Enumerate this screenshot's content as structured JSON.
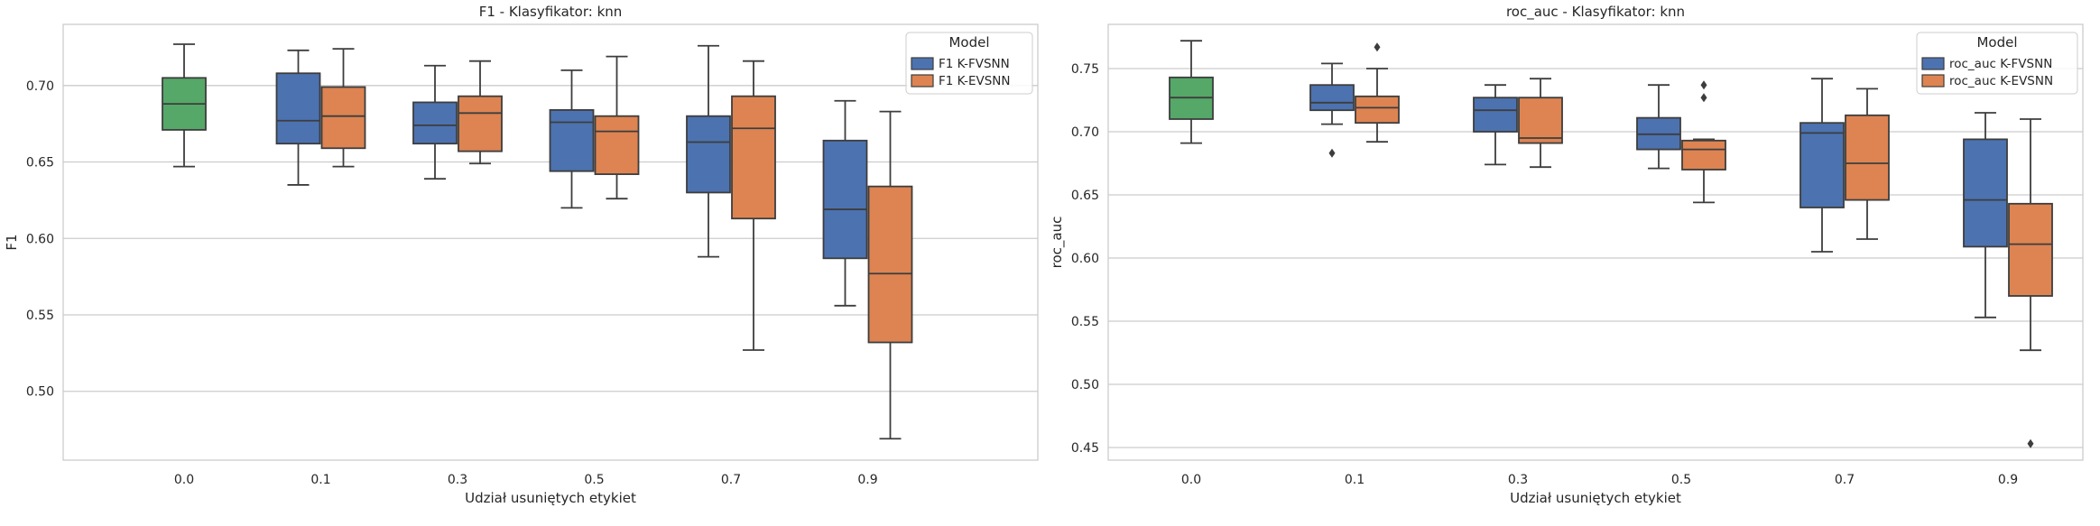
{
  "chart_data": [
    {
      "type": "box",
      "title": "F1 - Klasyfikator: knn",
      "xlabel": "Udział usuniętych etykiet",
      "ylabel": "F1",
      "categories": [
        "0.0",
        "0.1",
        "0.3",
        "0.5",
        "0.7",
        "0.9"
      ],
      "ylim": [
        0.455,
        0.74
      ],
      "yticks": [
        0.5,
        0.55,
        0.6,
        0.65,
        0.7
      ],
      "ytick_labels": [
        "0.50",
        "0.55",
        "0.60",
        "0.65",
        "0.70"
      ],
      "grid": true,
      "legend": {
        "title": "Model",
        "position": "top-right",
        "entries": [
          {
            "label": "F1 K-FVSNN",
            "color": "#4c72b0"
          },
          {
            "label": "F1 K-EVSNN",
            "color": "#dd8452"
          }
        ]
      },
      "baseline": {
        "category": "0.0",
        "color": "#55a868",
        "box": {
          "whislo": 0.647,
          "q1": 0.671,
          "med": 0.688,
          "q3": 0.705,
          "whishi": 0.727,
          "fliers": []
        }
      },
      "series": [
        {
          "name": "F1 K-FVSNN",
          "color": "#4c72b0",
          "boxes": [
            {
              "category": "0.1",
              "whislo": 0.635,
              "q1": 0.662,
              "med": 0.677,
              "q3": 0.708,
              "whishi": 0.723,
              "fliers": []
            },
            {
              "category": "0.3",
              "whislo": 0.639,
              "q1": 0.662,
              "med": 0.674,
              "q3": 0.689,
              "whishi": 0.713,
              "fliers": []
            },
            {
              "category": "0.5",
              "whislo": 0.62,
              "q1": 0.644,
              "med": 0.676,
              "q3": 0.684,
              "whishi": 0.71,
              "fliers": []
            },
            {
              "category": "0.7",
              "whislo": 0.588,
              "q1": 0.63,
              "med": 0.663,
              "q3": 0.68,
              "whishi": 0.726,
              "fliers": []
            },
            {
              "category": "0.9",
              "whislo": 0.556,
              "q1": 0.587,
              "med": 0.619,
              "q3": 0.664,
              "whishi": 0.69,
              "fliers": []
            }
          ]
        },
        {
          "name": "F1 K-EVSNN",
          "color": "#dd8452",
          "boxes": [
            {
              "category": "0.1",
              "whislo": 0.647,
              "q1": 0.659,
              "med": 0.68,
              "q3": 0.699,
              "whishi": 0.724,
              "fliers": []
            },
            {
              "category": "0.3",
              "whislo": 0.649,
              "q1": 0.657,
              "med": 0.682,
              "q3": 0.693,
              "whishi": 0.716,
              "fliers": []
            },
            {
              "category": "0.5",
              "whislo": 0.626,
              "q1": 0.642,
              "med": 0.67,
              "q3": 0.68,
              "whishi": 0.719,
              "fliers": []
            },
            {
              "category": "0.7",
              "whislo": 0.527,
              "q1": 0.613,
              "med": 0.672,
              "q3": 0.693,
              "whishi": 0.716,
              "fliers": []
            },
            {
              "category": "0.9",
              "whislo": 0.469,
              "q1": 0.532,
              "med": 0.577,
              "q3": 0.634,
              "whishi": 0.683,
              "fliers": []
            }
          ]
        }
      ]
    },
    {
      "type": "box",
      "title": "roc_auc - Klasyfikator: knn",
      "xlabel": "Udział usuniętych etykiet",
      "ylabel": "roc_auc",
      "categories": [
        "0.0",
        "0.1",
        "0.3",
        "0.5",
        "0.7",
        "0.9"
      ],
      "ylim": [
        0.44,
        0.785
      ],
      "yticks": [
        0.45,
        0.5,
        0.55,
        0.6,
        0.65,
        0.7,
        0.75
      ],
      "ytick_labels": [
        "0.45",
        "0.50",
        "0.55",
        "0.60",
        "0.65",
        "0.70",
        "0.75"
      ],
      "grid": true,
      "legend": {
        "title": "Model",
        "position": "top-right",
        "entries": [
          {
            "label": "roc_auc K-FVSNN",
            "color": "#4c72b0"
          },
          {
            "label": "roc_auc K-EVSNN",
            "color": "#dd8452"
          }
        ]
      },
      "baseline": {
        "category": "0.0",
        "color": "#55a868",
        "box": {
          "whislo": 0.691,
          "q1": 0.71,
          "med": 0.727,
          "q3": 0.743,
          "whishi": 0.772,
          "fliers": []
        }
      },
      "series": [
        {
          "name": "roc_auc K-FVSNN",
          "color": "#4c72b0",
          "boxes": [
            {
              "category": "0.1",
              "whislo": 0.706,
              "q1": 0.717,
              "med": 0.723,
              "q3": 0.737,
              "whishi": 0.754,
              "fliers": [
                0.683
              ]
            },
            {
              "category": "0.3",
              "whislo": 0.674,
              "q1": 0.7,
              "med": 0.717,
              "q3": 0.727,
              "whishi": 0.737,
              "fliers": []
            },
            {
              "category": "0.5",
              "whislo": 0.671,
              "q1": 0.686,
              "med": 0.698,
              "q3": 0.711,
              "whishi": 0.737,
              "fliers": []
            },
            {
              "category": "0.7",
              "whislo": 0.605,
              "q1": 0.64,
              "med": 0.699,
              "q3": 0.707,
              "whishi": 0.742,
              "fliers": []
            },
            {
              "category": "0.9",
              "whislo": 0.553,
              "q1": 0.609,
              "med": 0.646,
              "q3": 0.694,
              "whishi": 0.715,
              "fliers": []
            }
          ]
        },
        {
          "name": "roc_auc K-EVSNN",
          "color": "#dd8452",
          "boxes": [
            {
              "category": "0.1",
              "whislo": 0.692,
              "q1": 0.707,
              "med": 0.719,
              "q3": 0.728,
              "whishi": 0.75,
              "fliers": [
                0.767
              ]
            },
            {
              "category": "0.3",
              "whislo": 0.672,
              "q1": 0.691,
              "med": 0.695,
              "q3": 0.727,
              "whishi": 0.742,
              "fliers": []
            },
            {
              "category": "0.5",
              "whislo": 0.644,
              "q1": 0.67,
              "med": 0.686,
              "q3": 0.693,
              "whishi": 0.694,
              "fliers": [
                0.727,
                0.737
              ]
            },
            {
              "category": "0.7",
              "whislo": 0.615,
              "q1": 0.646,
              "med": 0.675,
              "q3": 0.713,
              "whishi": 0.734,
              "fliers": []
            },
            {
              "category": "0.9",
              "whislo": 0.527,
              "q1": 0.57,
              "med": 0.611,
              "q3": 0.643,
              "whishi": 0.71,
              "fliers": [
                0.453
              ]
            }
          ]
        }
      ]
    }
  ]
}
